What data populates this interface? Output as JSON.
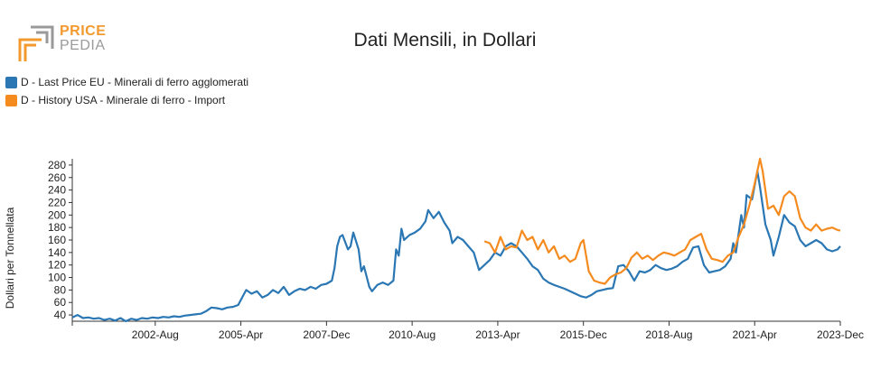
{
  "logo": {
    "line1": "PRICE",
    "line2": "PEDIA"
  },
  "title": "Dati Mensili, in Dollari",
  "colors": {
    "series1": "#2a77b4",
    "series2": "#f58b1f",
    "logo_orange": "#f29a2e",
    "logo_gray": "#9a9a9a"
  },
  "chart_data": {
    "type": "line",
    "ylabel": "Dollari per Tonnellata",
    "xlabel": "",
    "ylim": [
      30,
      290
    ],
    "yticks": [
      40,
      60,
      80,
      100,
      120,
      140,
      160,
      180,
      200,
      220,
      240,
      260,
      280
    ],
    "xlim": [
      "2000-01",
      "2023-12"
    ],
    "xticks": [
      "2002-Aug",
      "2005-Apr",
      "2007-Dec",
      "2010-Aug",
      "2013-Apr",
      "2015-Dec",
      "2018-Aug",
      "2021-Apr",
      "2023-Dec"
    ],
    "grid": false,
    "legend_position": "top-left",
    "series": [
      {
        "name": "D - Last Price EU - Minerali di ferro agglomerati",
        "points": [
          [
            "2000-01",
            36
          ],
          [
            "2000-03",
            40
          ],
          [
            "2000-05",
            35
          ],
          [
            "2000-07",
            36
          ],
          [
            "2000-09",
            34
          ],
          [
            "2000-11",
            35
          ],
          [
            "2001-01",
            32
          ],
          [
            "2001-03",
            34
          ],
          [
            "2001-05",
            31
          ],
          [
            "2001-07",
            35
          ],
          [
            "2001-09",
            30
          ],
          [
            "2001-11",
            34
          ],
          [
            "2002-01",
            32
          ],
          [
            "2002-03",
            35
          ],
          [
            "2002-05",
            34
          ],
          [
            "2002-07",
            36
          ],
          [
            "2002-09",
            35
          ],
          [
            "2002-11",
            37
          ],
          [
            "2003-01",
            36
          ],
          [
            "2003-03",
            38
          ],
          [
            "2003-05",
            37
          ],
          [
            "2003-07",
            39
          ],
          [
            "2003-09",
            40
          ],
          [
            "2003-11",
            41
          ],
          [
            "2004-01",
            42
          ],
          [
            "2004-03",
            46
          ],
          [
            "2004-05",
            52
          ],
          [
            "2004-07",
            51
          ],
          [
            "2004-09",
            49
          ],
          [
            "2004-11",
            52
          ],
          [
            "2005-01",
            53
          ],
          [
            "2005-03",
            56
          ],
          [
            "2005-05",
            72
          ],
          [
            "2005-06",
            80
          ],
          [
            "2005-08",
            74
          ],
          [
            "2005-10",
            78
          ],
          [
            "2005-12",
            68
          ],
          [
            "2006-02",
            72
          ],
          [
            "2006-04",
            80
          ],
          [
            "2006-06",
            75
          ],
          [
            "2006-08",
            85
          ],
          [
            "2006-10",
            72
          ],
          [
            "2006-12",
            78
          ],
          [
            "2007-02",
            82
          ],
          [
            "2007-04",
            80
          ],
          [
            "2007-06",
            85
          ],
          [
            "2007-08",
            82
          ],
          [
            "2007-10",
            88
          ],
          [
            "2007-12",
            90
          ],
          [
            "2008-02",
            95
          ],
          [
            "2008-03",
            115
          ],
          [
            "2008-04",
            150
          ],
          [
            "2008-05",
            165
          ],
          [
            "2008-06",
            168
          ],
          [
            "2008-08",
            145
          ],
          [
            "2008-09",
            150
          ],
          [
            "2008-10",
            172
          ],
          [
            "2008-12",
            145
          ],
          [
            "2009-01",
            110
          ],
          [
            "2009-02",
            118
          ],
          [
            "2009-04",
            85
          ],
          [
            "2009-05",
            78
          ],
          [
            "2009-07",
            88
          ],
          [
            "2009-09",
            92
          ],
          [
            "2009-11",
            88
          ],
          [
            "2010-01",
            95
          ],
          [
            "2010-02",
            145
          ],
          [
            "2010-03",
            135
          ],
          [
            "2010-04",
            178
          ],
          [
            "2010-05",
            160
          ],
          [
            "2010-07",
            168
          ],
          [
            "2010-09",
            172
          ],
          [
            "2010-11",
            178
          ],
          [
            "2011-01",
            190
          ],
          [
            "2011-02",
            208
          ],
          [
            "2011-04",
            195
          ],
          [
            "2011-06",
            205
          ],
          [
            "2011-08",
            188
          ],
          [
            "2011-10",
            175
          ],
          [
            "2011-11",
            155
          ],
          [
            "2012-01",
            165
          ],
          [
            "2012-03",
            160
          ],
          [
            "2012-05",
            150
          ],
          [
            "2012-07",
            140
          ],
          [
            "2012-09",
            112
          ],
          [
            "2012-11",
            120
          ],
          [
            "2013-01",
            128
          ],
          [
            "2013-03",
            140
          ],
          [
            "2013-05",
            135
          ],
          [
            "2013-07",
            150
          ],
          [
            "2013-09",
            155
          ],
          [
            "2013-11",
            150
          ],
          [
            "2014-01",
            140
          ],
          [
            "2014-03",
            130
          ],
          [
            "2014-05",
            118
          ],
          [
            "2014-07",
            112
          ],
          [
            "2014-09",
            98
          ],
          [
            "2014-11",
            92
          ],
          [
            "2015-01",
            88
          ],
          [
            "2015-03",
            85
          ],
          [
            "2015-05",
            82
          ],
          [
            "2015-07",
            78
          ],
          [
            "2015-09",
            74
          ],
          [
            "2015-11",
            70
          ],
          [
            "2016-01",
            68
          ],
          [
            "2016-03",
            72
          ],
          [
            "2016-05",
            78
          ],
          [
            "2016-07",
            80
          ],
          [
            "2016-09",
            82
          ],
          [
            "2016-11",
            83
          ],
          [
            "2017-01",
            118
          ],
          [
            "2017-03",
            120
          ],
          [
            "2017-05",
            110
          ],
          [
            "2017-07",
            95
          ],
          [
            "2017-09",
            110
          ],
          [
            "2017-11",
            108
          ],
          [
            "2018-01",
            112
          ],
          [
            "2018-03",
            120
          ],
          [
            "2018-05",
            115
          ],
          [
            "2018-07",
            112
          ],
          [
            "2018-09",
            114
          ],
          [
            "2018-11",
            118
          ],
          [
            "2019-01",
            125
          ],
          [
            "2019-03",
            130
          ],
          [
            "2019-05",
            148
          ],
          [
            "2019-07",
            150
          ],
          [
            "2019-09",
            120
          ],
          [
            "2019-11",
            108
          ],
          [
            "2020-01",
            110
          ],
          [
            "2020-03",
            112
          ],
          [
            "2020-05",
            118
          ],
          [
            "2020-07",
            130
          ],
          [
            "2020-08",
            155
          ],
          [
            "2020-09",
            140
          ],
          [
            "2020-11",
            200
          ],
          [
            "2020-12",
            180
          ],
          [
            "2021-01",
            232
          ],
          [
            "2021-03",
            225
          ],
          [
            "2021-05",
            270
          ],
          [
            "2021-06",
            245
          ],
          [
            "2021-08",
            185
          ],
          [
            "2021-10",
            160
          ],
          [
            "2021-11",
            135
          ],
          [
            "2022-01",
            165
          ],
          [
            "2022-03",
            200
          ],
          [
            "2022-05",
            188
          ],
          [
            "2022-07",
            182
          ],
          [
            "2022-09",
            160
          ],
          [
            "2022-11",
            150
          ],
          [
            "2023-01",
            155
          ],
          [
            "2023-03",
            160
          ],
          [
            "2023-05",
            155
          ],
          [
            "2023-07",
            145
          ],
          [
            "2023-09",
            142
          ],
          [
            "2023-11",
            145
          ],
          [
            "2023-12",
            150
          ]
        ]
      },
      {
        "name": "D - History USA - Minerale di ferro - Import",
        "points": [
          [
            "2012-11",
            158
          ],
          [
            "2013-01",
            155
          ],
          [
            "2013-03",
            140
          ],
          [
            "2013-05",
            165
          ],
          [
            "2013-07",
            145
          ],
          [
            "2013-09",
            150
          ],
          [
            "2013-11",
            148
          ],
          [
            "2014-01",
            175
          ],
          [
            "2014-03",
            160
          ],
          [
            "2014-05",
            165
          ],
          [
            "2014-07",
            145
          ],
          [
            "2014-09",
            160
          ],
          [
            "2014-11",
            140
          ],
          [
            "2015-01",
            150
          ],
          [
            "2015-03",
            130
          ],
          [
            "2015-05",
            135
          ],
          [
            "2015-07",
            125
          ],
          [
            "2015-09",
            130
          ],
          [
            "2015-11",
            155
          ],
          [
            "2015-12",
            160
          ],
          [
            "2016-02",
            110
          ],
          [
            "2016-04",
            95
          ],
          [
            "2016-06",
            92
          ],
          [
            "2016-08",
            90
          ],
          [
            "2016-10",
            100
          ],
          [
            "2016-12",
            105
          ],
          [
            "2017-02",
            108
          ],
          [
            "2017-04",
            115
          ],
          [
            "2017-06",
            132
          ],
          [
            "2017-08",
            140
          ],
          [
            "2017-10",
            130
          ],
          [
            "2017-12",
            135
          ],
          [
            "2018-02",
            128
          ],
          [
            "2018-04",
            135
          ],
          [
            "2018-06",
            140
          ],
          [
            "2018-08",
            138
          ],
          [
            "2018-10",
            135
          ],
          [
            "2018-12",
            140
          ],
          [
            "2019-02",
            145
          ],
          [
            "2019-04",
            160
          ],
          [
            "2019-06",
            165
          ],
          [
            "2019-08",
            170
          ],
          [
            "2019-10",
            145
          ],
          [
            "2019-12",
            130
          ],
          [
            "2020-02",
            128
          ],
          [
            "2020-04",
            125
          ],
          [
            "2020-06",
            135
          ],
          [
            "2020-08",
            140
          ],
          [
            "2020-10",
            165
          ],
          [
            "2020-12",
            185
          ],
          [
            "2021-02",
            215
          ],
          [
            "2021-04",
            250
          ],
          [
            "2021-06",
            290
          ],
          [
            "2021-07",
            270
          ],
          [
            "2021-09",
            210
          ],
          [
            "2021-11",
            215
          ],
          [
            "2022-01",
            200
          ],
          [
            "2022-03",
            230
          ],
          [
            "2022-05",
            238
          ],
          [
            "2022-07",
            230
          ],
          [
            "2022-09",
            195
          ],
          [
            "2022-11",
            180
          ],
          [
            "2023-01",
            175
          ],
          [
            "2023-03",
            185
          ],
          [
            "2023-05",
            175
          ],
          [
            "2023-07",
            178
          ],
          [
            "2023-09",
            180
          ],
          [
            "2023-11",
            176
          ],
          [
            "2023-12",
            175
          ]
        ]
      }
    ]
  }
}
